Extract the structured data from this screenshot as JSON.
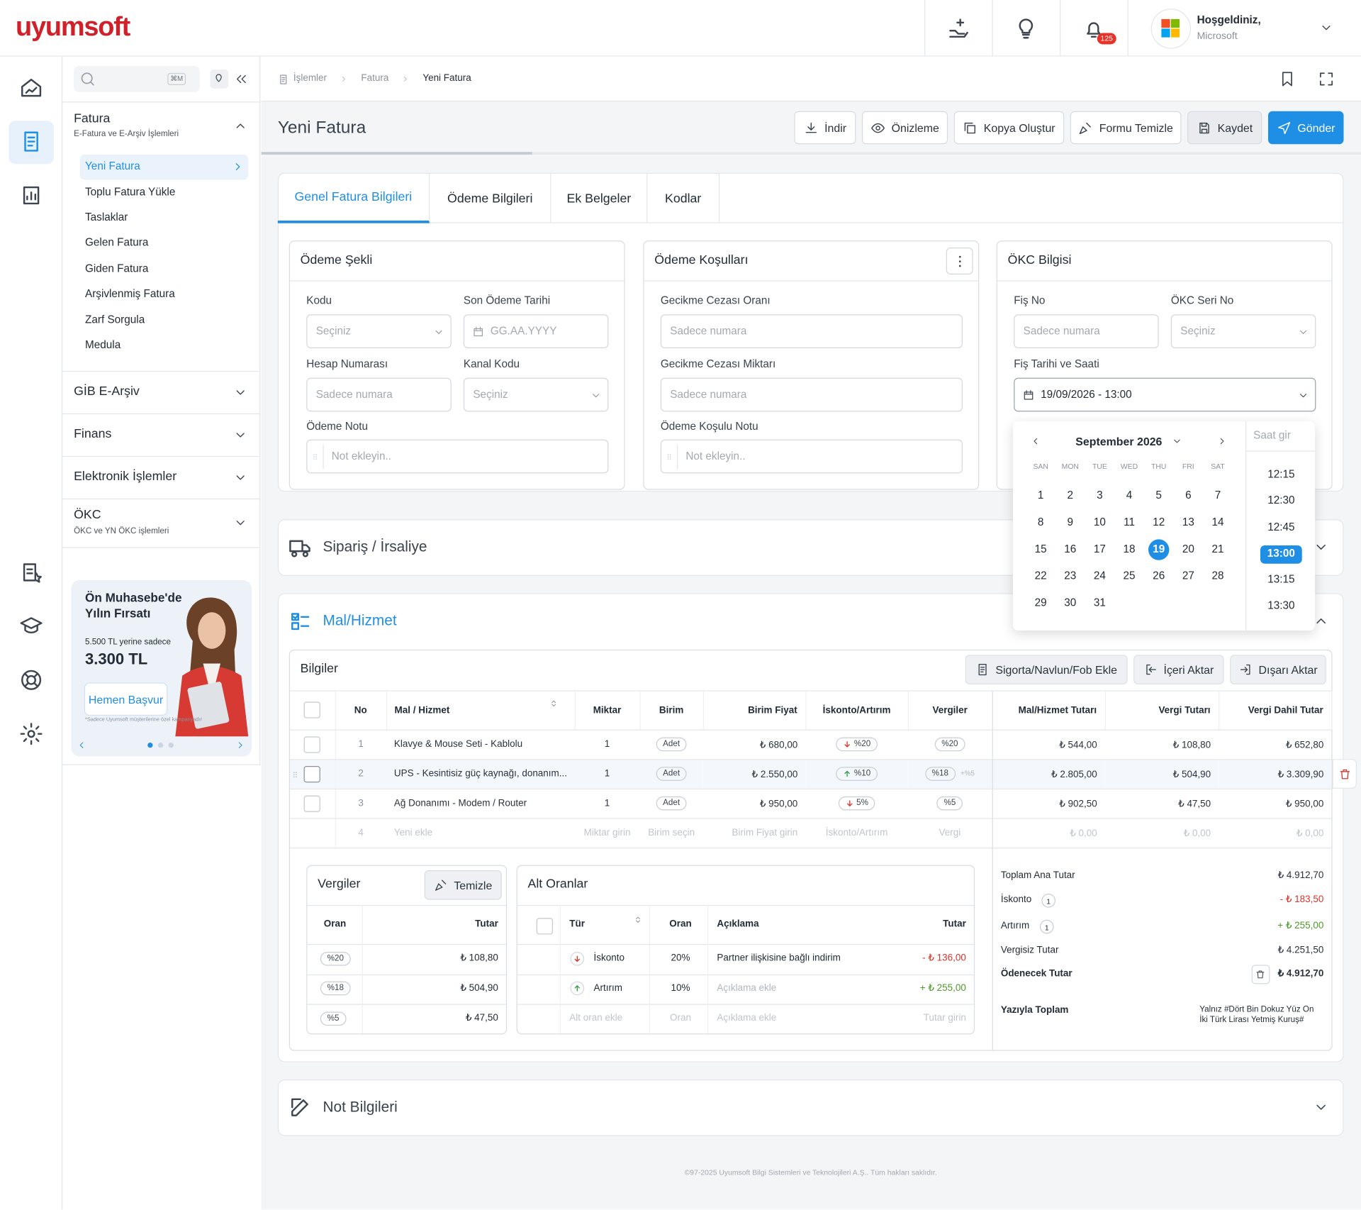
{
  "header": {
    "logo": "uyumsoft",
    "notification_count": "125",
    "greeting": "Hoşgeldiniz,",
    "company": "Microsoft"
  },
  "sidebar": {
    "search_shortcut": "⌘M",
    "menu_title": "Fatura",
    "menu_subtitle": "E-Fatura ve E-Arşiv İşlemleri",
    "menu_items": [
      "Yeni Fatura",
      "Toplu Fatura Yükle",
      "Taslaklar",
      "Gelen Fatura",
      "Giden Fatura",
      "Arşivlenmiş Fatura",
      "Zarf Sorgula",
      "Medula"
    ],
    "sections": [
      {
        "title": "GİB E-Arşiv"
      },
      {
        "title": "Finans"
      },
      {
        "title": "Elektronik İşlemler"
      },
      {
        "title": "ÖKC",
        "subtitle": "ÖKC ve YN ÖKC işlemleri"
      }
    ],
    "promo": {
      "title_line1": "Ön Muhasebe'de",
      "title_line2": "Yılın Fırsatı",
      "old_price": "5.500 TL yerine sadece",
      "price": "3.300 TL",
      "button": "Hemen Başvur",
      "note": "*Sadece Uyumsoft müşterilerine özel kampanyadır"
    }
  },
  "breadcrumb": [
    "İşlemler",
    "Fatura",
    "Yeni Fatura"
  ],
  "page": {
    "title": "Yeni Fatura",
    "actions": [
      "İndir",
      "Önizleme",
      "Kopya Oluştur",
      "Formu Temizle",
      "Kaydet",
      "Gönder"
    ]
  },
  "tabs": [
    "Genel Fatura Bilgileri",
    "Ödeme Bilgileri",
    "Ek Belgeler",
    "Kodlar"
  ],
  "cards": [
    {
      "title": "Ödeme Şekli",
      "rows": [
        [
          {
            "label": "Kodu",
            "placeholder": "Seçiniz",
            "kind": "select"
          },
          {
            "label": "Son Ödeme Tarihi",
            "placeholder": "GG.AA.YYYY",
            "kind": "date"
          }
        ],
        [
          {
            "label": "Hesap Numarası",
            "placeholder": "Sadece numara",
            "kind": "text"
          },
          {
            "label": "Kanal Kodu",
            "placeholder": "Seçiniz",
            "kind": "select"
          }
        ],
        [
          {
            "label": "Ödeme Notu",
            "placeholder": "Not ekleyin..",
            "kind": "note"
          }
        ]
      ]
    },
    {
      "title": "Ödeme Koşulları",
      "rows": [
        [
          {
            "label": "Gecikme Cezası Oranı",
            "placeholder": "Sadece numara",
            "kind": "text"
          }
        ],
        [
          {
            "label": "Gecikme Cezası Miktarı",
            "placeholder": "Sadece numara",
            "kind": "text"
          }
        ],
        [
          {
            "label": "Ödeme Koşulu Notu",
            "placeholder": "Not ekleyin..",
            "kind": "note"
          }
        ]
      ]
    },
    {
      "title": "ÖKC Bilgisi",
      "rows": [
        [
          {
            "label": "Fiş No",
            "placeholder": "Sadece numara",
            "kind": "text"
          },
          {
            "label": "ÖKC Seri No",
            "placeholder": "Seçiniz",
            "kind": "select"
          }
        ],
        [
          {
            "label": "Fiş Tarihi ve Saati",
            "value": "19/09/2026 - 13:00",
            "kind": "datetime"
          }
        ]
      ]
    }
  ],
  "calendar": {
    "month": "September 2026",
    "weekdays": [
      "SAN",
      "MON",
      "TUE",
      "WED",
      "THU",
      "FRI",
      "SAT"
    ],
    "days": [
      1,
      2,
      3,
      4,
      5,
      6,
      7,
      8,
      9,
      10,
      11,
      12,
      13,
      14,
      15,
      16,
      17,
      18,
      19,
      20,
      21,
      22,
      23,
      24,
      25,
      26,
      27,
      28,
      29,
      30,
      31
    ],
    "selected_day": 19,
    "time_placeholder": "Saat gir",
    "times": [
      "12:15",
      "12:30",
      "12:45",
      "13:00",
      "13:15",
      "13:30"
    ],
    "selected_time": "13:00"
  },
  "sections": {
    "order": "Sipariş / İrsaliye",
    "goods": "Mal/Hizmet",
    "notes": "Not Bilgileri"
  },
  "goods": {
    "title": "Bilgiler",
    "actions": [
      "Sigorta/Navlun/Fob Ekle",
      "İçeri Aktar",
      "Dışarı Aktar"
    ],
    "columns": [
      "No",
      "Mal / Hizmet",
      "Miktar",
      "Birim",
      "Birim Fiyat",
      "İskonto/Artırım",
      "Vergiler",
      "Mal/Hizmet Tutarı",
      "Vergi Tutarı",
      "Vergi Dahil Tutar"
    ],
    "rows": [
      {
        "no": 1,
        "name": "Klavye & Mouse Seti - Kablolu",
        "qty": 1,
        "unit": "Adet",
        "price": "₺ 680,00",
        "adjust": "%20",
        "adjust_dir": "down",
        "tax": "%20",
        "amount": "₺ 544,00",
        "tax_amount": "₺ 108,80",
        "total": "₺ 652,80"
      },
      {
        "no": 2,
        "name": "UPS - Kesintisiz güç kaynağı, donanım...",
        "qty": 1,
        "unit": "Adet",
        "price": "₺ 2.550,00",
        "adjust": "%10",
        "adjust_dir": "up",
        "tax": "%18",
        "extra_tax": "+%5",
        "amount": "₺ 2.805,00",
        "tax_amount": "₺ 504,90",
        "total": "₺ 3.309,90",
        "hover": true
      },
      {
        "no": 3,
        "name": "Ağ Donanımı - Modem / Router",
        "qty": 1,
        "unit": "Adet",
        "price": "₺ 950,00",
        "adjust": "5%",
        "adjust_dir": "down",
        "tax": "%5",
        "amount": "₺ 902,50",
        "tax_amount": "₺ 47,50",
        "total": "₺ 950,00"
      }
    ],
    "new_row": {
      "no": 4,
      "name": "Yeni ekle",
      "qty": "Miktar girin",
      "unit": "Birim seçin",
      "price": "Birim Fiyat girin",
      "adjust": "İskonto/Artırım",
      "tax": "Vergi",
      "amount": "₺ 0,00",
      "tax_amount": "₺ 0,00",
      "total": "₺ 0,00"
    }
  },
  "taxes": {
    "title": "Vergiler",
    "clear": "Temizle",
    "columns": [
      "Oran",
      "Tutar"
    ],
    "rows": [
      [
        "%20",
        "₺ 108,80"
      ],
      [
        "%18",
        "₺ 504,90"
      ],
      [
        "%5",
        "₺ 47,50"
      ]
    ]
  },
  "sub_rates": {
    "title": "Alt Oranlar",
    "columns": [
      "Tür",
      "Oran",
      "Açıklama",
      "Tutar"
    ],
    "rows": [
      {
        "dir": "down",
        "type": "İskonto",
        "rate": "20%",
        "desc": "Partner ilişkisine bağlı indirim",
        "amount": "- ₺ 136,00",
        "tone": "negative"
      },
      {
        "dir": "up",
        "type": "Artırım",
        "rate": "10%",
        "desc": "Açıklama ekle",
        "amount": "+ ₺ 255,00",
        "tone": "positive",
        "desc_placeholder": true
      }
    ],
    "new_row": {
      "type": "Alt oran ekle",
      "rate": "Oran",
      "desc": "Açıklama ekle",
      "amount": "Tutar girin"
    }
  },
  "totals": {
    "rows": [
      {
        "label": "Toplam Ana Tutar",
        "value": "₺ 4.912,70"
      },
      {
        "label": "İskonto",
        "count": 1,
        "value": "- ₺ 183,50",
        "tone": "negative"
      },
      {
        "label": "Artırım",
        "count": 1,
        "value": "+ ₺ 255,00",
        "tone": "positive"
      },
      {
        "label": "Vergisiz Tutar",
        "value": "₺ 4.251,50"
      },
      {
        "label": "Ödenecek Tutar",
        "value": "₺ 4.912,70",
        "strong": true
      }
    ],
    "words_label": "Yazıyla Toplam",
    "words": "Yalnız #Dört Bin Dokuz Yüz On İki Türk Lirası Yetmiş Kuruş#"
  },
  "footer": "©97-2025 Uyumsoft Bilgi Sistemleri ve Teknolojileri A.Ş.. Tüm hakları saklıdır."
}
